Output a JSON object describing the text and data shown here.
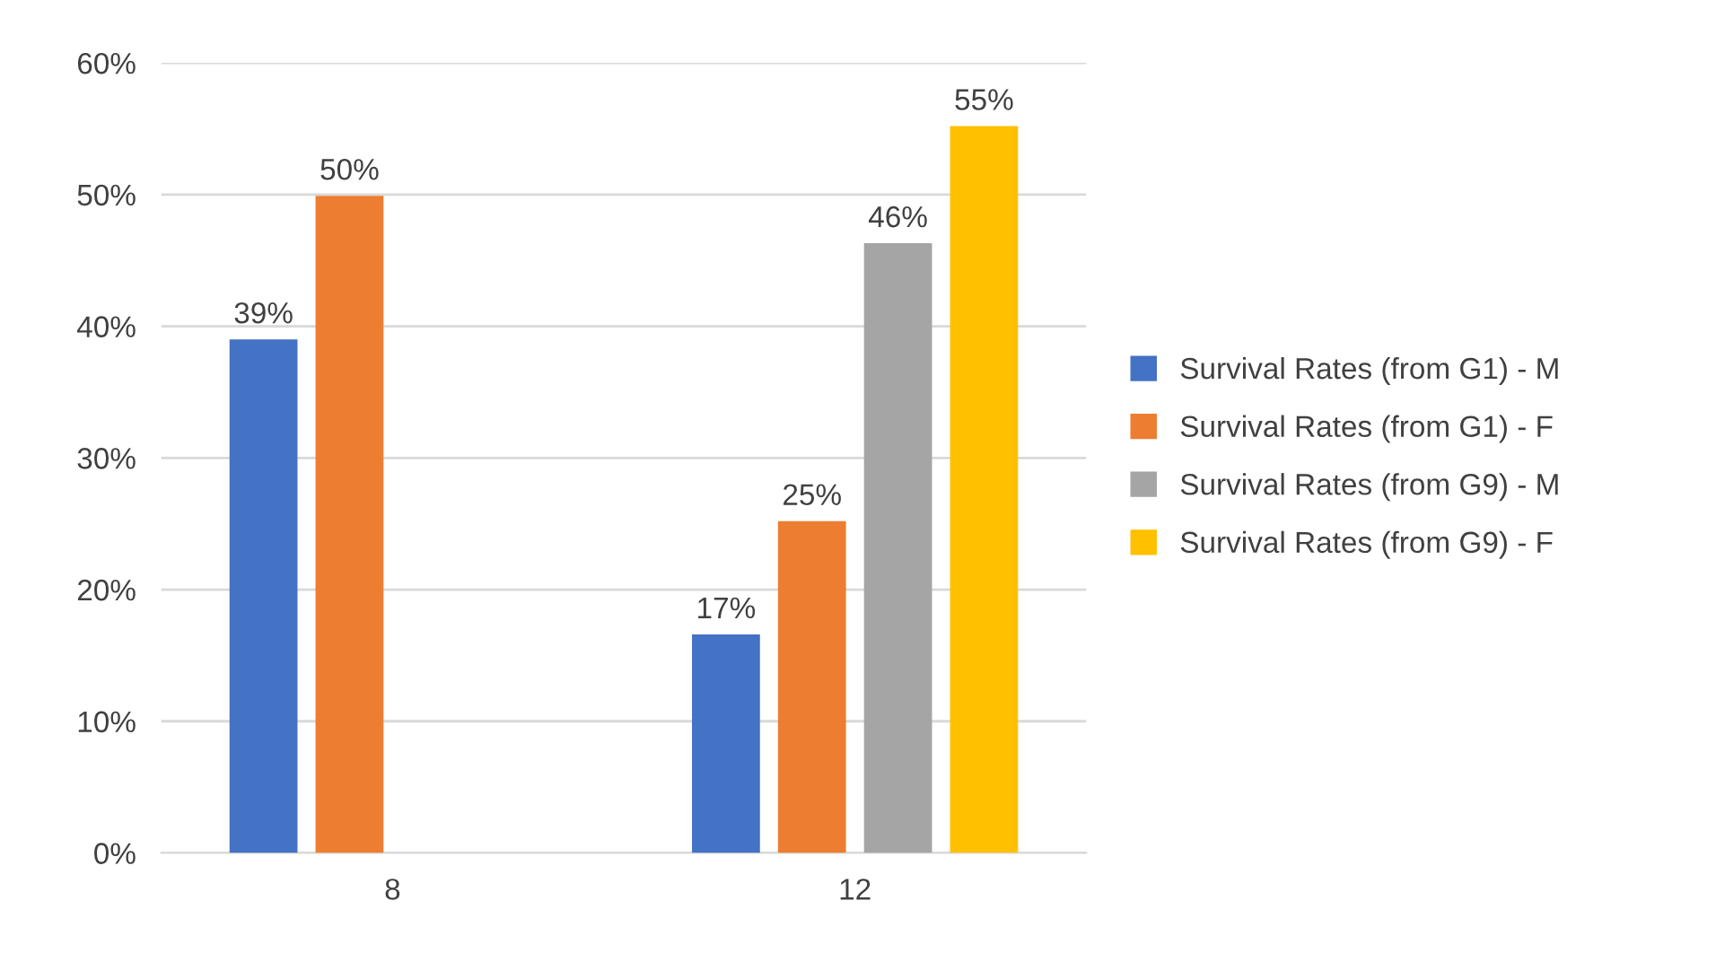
{
  "chart_data": {
    "type": "bar",
    "categories": [
      "8",
      "12"
    ],
    "series": [
      {
        "name": "Survival Rates (from G1) - M",
        "color": "#4472c4",
        "values": [
          39,
          16.6
        ],
        "value_labels": [
          "39%",
          "17%"
        ]
      },
      {
        "name": "Survival Rates (from G1) - F",
        "color": "#ed7d31",
        "values": [
          49.9,
          25.2
        ],
        "value_labels": [
          "50%",
          "25%"
        ]
      },
      {
        "name": "Survival Rates (from G9) - M",
        "color": "#a5a5a5",
        "values": [
          null,
          46.3
        ],
        "value_labels": [
          null,
          "46%"
        ]
      },
      {
        "name": "Survival Rates (from G9) - F",
        "color": "#ffc000",
        "values": [
          null,
          55.2
        ],
        "value_labels": [
          null,
          "55%"
        ]
      }
    ],
    "ylim": [
      0,
      60
    ],
    "yticks": [
      {
        "value": 0,
        "label": "0%"
      },
      {
        "value": 10,
        "label": "10%"
      },
      {
        "value": 20,
        "label": "20%"
      },
      {
        "value": 30,
        "label": "30%"
      },
      {
        "value": 40,
        "label": "40%"
      },
      {
        "value": 50,
        "label": "50%"
      },
      {
        "value": 60,
        "label": "60%"
      }
    ],
    "grid": "y",
    "legend": "right"
  }
}
